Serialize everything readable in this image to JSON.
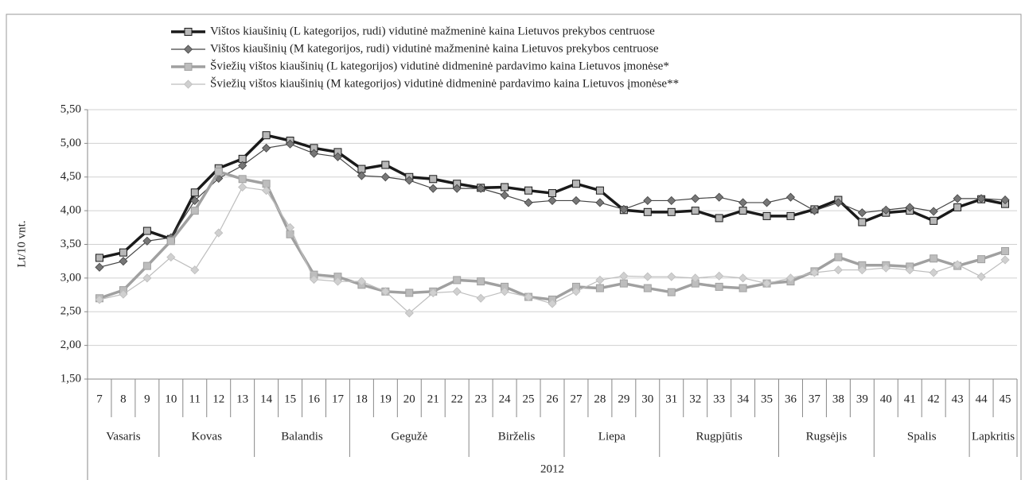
{
  "chart_data": {
    "type": "line",
    "ylabel": "Lt/10 vnt.",
    "categories": [
      "7",
      "8",
      "9",
      "10",
      "11",
      "12",
      "13",
      "14",
      "15",
      "16",
      "17",
      "18",
      "19",
      "20",
      "21",
      "22",
      "23",
      "24",
      "25",
      "26",
      "27",
      "28",
      "29",
      "30",
      "31",
      "32",
      "33",
      "34",
      "35",
      "36",
      "37",
      "38",
      "39",
      "40",
      "41",
      "42",
      "43",
      "44",
      "45"
    ],
    "months": [
      {
        "label": "Vasaris",
        "count": 3
      },
      {
        "label": "Kovas",
        "count": 4
      },
      {
        "label": "Balandis",
        "count": 4
      },
      {
        "label": "Gegužė",
        "count": 5
      },
      {
        "label": "Birželis",
        "count": 4
      },
      {
        "label": "Liepa",
        "count": 4
      },
      {
        "label": "Rugpjūtis",
        "count": 5
      },
      {
        "label": "Rugsėjis",
        "count": 4
      },
      {
        "label": "Spalis",
        "count": 4
      },
      {
        "label": "Lapkritis",
        "count": 2
      }
    ],
    "year": "2012",
    "ylim": [
      1.5,
      5.5
    ],
    "yticks": [
      {
        "value": 1.5,
        "label": "1,50"
      },
      {
        "value": 2,
        "label": "2,00"
      },
      {
        "value": 2.5,
        "label": "2,50"
      },
      {
        "value": 3,
        "label": "3,00"
      },
      {
        "value": 3.5,
        "label": "3,50"
      },
      {
        "value": 4,
        "label": "4,00"
      },
      {
        "value": 4.5,
        "label": "4,50"
      },
      {
        "value": 5,
        "label": "5,00"
      },
      {
        "value": 5.5,
        "label": "5,50"
      }
    ],
    "series": [
      {
        "name": "Vištos kiaušinių (L kategorijos, rudi) vidutinė mažmeninė kaina Lietuvos prekybos centruose",
        "color": "#1a1a1a",
        "marker_color": "#b8b8b8",
        "marker": "square",
        "width": 3.5,
        "values": [
          3.3,
          3.38,
          3.7,
          3.58,
          4.27,
          4.63,
          4.77,
          5.12,
          5.04,
          4.93,
          4.87,
          4.62,
          4.68,
          4.5,
          4.47,
          4.4,
          4.34,
          4.35,
          4.3,
          4.26,
          4.4,
          4.3,
          4.01,
          3.98,
          3.98,
          4.0,
          3.89,
          4.0,
          3.92,
          3.92,
          4.02,
          4.16,
          3.83,
          3.97,
          4.0,
          3.85,
          4.05,
          4.17,
          4.1
        ]
      },
      {
        "name": "Vištos kiaušinių (M kategorijos, rudi) vidutinė mažmeninė kaina Lietuvos prekybos centruose",
        "color": "#444444",
        "marker_color": "#777777",
        "marker": "diamond",
        "width": 1.2,
        "values": [
          3.16,
          3.25,
          3.55,
          3.6,
          4.15,
          4.48,
          4.67,
          4.93,
          4.99,
          4.85,
          4.8,
          4.52,
          4.5,
          4.45,
          4.33,
          4.33,
          4.33,
          4.23,
          4.12,
          4.15,
          4.15,
          4.12,
          4.02,
          4.15,
          4.15,
          4.18,
          4.2,
          4.12,
          4.12,
          4.2,
          4.0,
          4.12,
          3.97,
          4.01,
          4.05,
          3.99,
          4.18,
          4.18,
          4.16
        ]
      },
      {
        "name": "Šviežių vištos kiaušinių (L kategorijos) vidutinė didmeninė pardavimo kaina Lietuvos įmonėse*",
        "color": "#a0a0a0",
        "marker_color": "#bdbdbd",
        "marker": "square",
        "width": 3.5,
        "values": [
          2.7,
          2.82,
          3.18,
          3.55,
          4.0,
          4.58,
          4.47,
          4.4,
          3.65,
          3.05,
          3.02,
          2.9,
          2.8,
          2.78,
          2.8,
          2.97,
          2.95,
          2.87,
          2.72,
          2.68,
          2.87,
          2.85,
          2.92,
          2.85,
          2.79,
          2.92,
          2.87,
          2.85,
          2.92,
          2.95,
          3.1,
          3.31,
          3.19,
          3.19,
          3.17,
          3.29,
          3.18,
          3.28,
          3.4
        ]
      },
      {
        "name": "Šviežių vištos kiaušinių (M kategorijos) vidutinė didmeninė pardavimo kaina Lietuvos įmonėse**",
        "color": "#bdbdbd",
        "marker_color": "#d0d0d0",
        "marker": "diamond",
        "width": 1.2,
        "values": [
          2.68,
          2.76,
          3.0,
          3.31,
          3.12,
          3.67,
          4.35,
          4.3,
          3.75,
          2.98,
          2.95,
          2.95,
          2.8,
          2.48,
          2.78,
          2.8,
          2.7,
          2.8,
          2.72,
          2.62,
          2.8,
          2.97,
          3.03,
          3.02,
          3.02,
          3.0,
          3.03,
          3.0,
          2.92,
          3.0,
          3.08,
          3.12,
          3.12,
          3.15,
          3.12,
          3.08,
          3.2,
          3.02,
          3.27
        ]
      }
    ],
    "grid": true
  }
}
